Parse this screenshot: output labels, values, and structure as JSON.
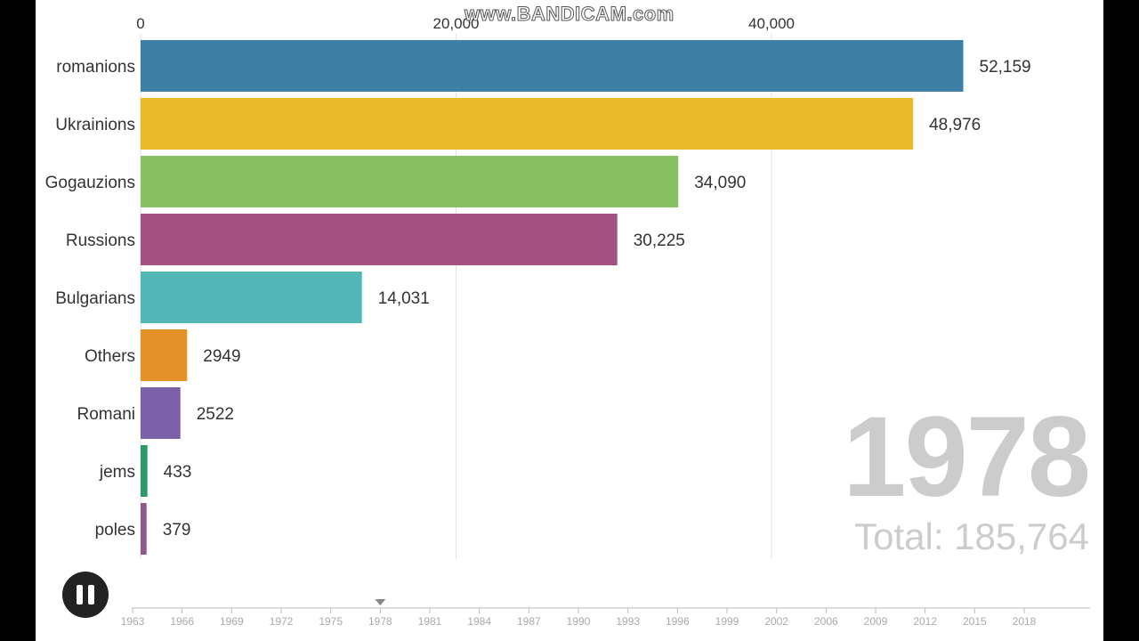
{
  "watermark": "www.BANDICAM.com",
  "current_year": "1978",
  "total_label": "Total:",
  "total_value": "185,764",
  "chart_data": {
    "type": "bar",
    "orientation": "horizontal",
    "title": "",
    "xlabel": "",
    "ylabel": "",
    "xlim": [
      0,
      58000
    ],
    "x_ticks": [
      0,
      20000,
      40000
    ],
    "x_tick_labels": [
      "0",
      "20,000",
      "40,000"
    ],
    "grid": true,
    "categories": [
      "romanions",
      "Ukrainions",
      "Gogauzions",
      "Russions",
      "Bulgarians",
      "Others",
      "Romani",
      "jems",
      "poles"
    ],
    "values": [
      52159,
      48976,
      34090,
      30225,
      14031,
      2949,
      2522,
      433,
      379
    ],
    "value_labels": [
      "52,159",
      "48,976",
      "34,090",
      "30,225",
      "14,031",
      "2949",
      "2522",
      "433",
      "379"
    ],
    "colors": [
      "#3e7fa6",
      "#ebbb2c",
      "#88bf60",
      "#a55281",
      "#54b7b7",
      "#e5912a",
      "#7b62a8",
      "#2e9967",
      "#8e5a8d"
    ]
  },
  "timeline": {
    "years": [
      "1963",
      "1966",
      "1969",
      "1972",
      "1975",
      "1978",
      "1981",
      "1984",
      "1987",
      "1990",
      "1993",
      "1996",
      "1999",
      "2002",
      "2006",
      "2009",
      "2012",
      "2015",
      "2018"
    ],
    "current": "1978"
  },
  "controls": {
    "pause_icon": "pause-icon"
  }
}
